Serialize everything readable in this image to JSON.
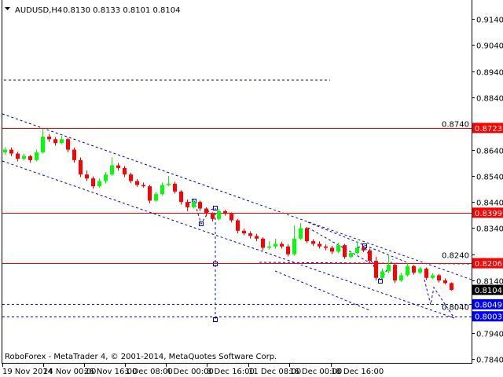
{
  "header": {
    "menu_icon": "triangle-down-icon",
    "symbol": "AUDUSD,H4",
    "ohlc": "0.8130 0.8133 0.8101 0.8104"
  },
  "footer": {
    "copyright": "RoboForex - MetaTrader 4, © 2001-2014, MetaQuotes Software Corp."
  },
  "chart_data": {
    "type": "candlestick",
    "title": "AUDUSD,H4",
    "ylim": [
      0.784,
      0.914
    ],
    "grid": false,
    "price_ticks": [
      "0.9140",
      "0.9040",
      "0.8940",
      "0.8840",
      "0.8740",
      "0.8640",
      "0.8540",
      "0.8440",
      "0.8340",
      "0.8240",
      "0.8140",
      "0.8040",
      "0.7940",
      "0.7840"
    ],
    "time_ticks": [
      "19 Nov 2014",
      "24 Nov 00:00",
      "26 Nov 16:00",
      "1 Dec 08:00",
      "4 Dec 00:00",
      "8 Dec 16:00",
      "11 Dec 08:00",
      "16 Dec 00:00",
      "18 Dec 16:00"
    ],
    "colors": {
      "bull": "#00ff00",
      "bear": "#ff0000",
      "level": "#ff0000",
      "target": "#0000ff",
      "channel": "#0000cc"
    },
    "levels": [
      {
        "price": 0.8723,
        "label": "0.8723",
        "color": "#ff0000",
        "style": "solid"
      },
      {
        "price": 0.8399,
        "label": "0.8399",
        "color": "#ff0000",
        "style": "solid"
      },
      {
        "price": 0.8206,
        "label": "0.8206",
        "color": "#ff0000",
        "style": "solid"
      },
      {
        "price": 0.8049,
        "label": "0.8049",
        "color": "#0000ff",
        "style": "dashed"
      },
      {
        "price": 0.8003,
        "label": "0.8003",
        "color": "#0000ff",
        "style": "dashed"
      }
    ],
    "short_level": {
      "price": 0.8906,
      "color": "#0000cc",
      "style": "dashed"
    },
    "current_price": {
      "price": 0.8104,
      "label": "0.8104",
      "color": "#000000"
    },
    "candles": [
      [
        0.863,
        0.865,
        0.862,
        0.864
      ],
      [
        0.864,
        0.8648,
        0.8615,
        0.8625
      ],
      [
        0.8625,
        0.8632,
        0.8595,
        0.8605
      ],
      [
        0.8605,
        0.8625,
        0.8598,
        0.8615
      ],
      [
        0.8615,
        0.862,
        0.859,
        0.86
      ],
      [
        0.86,
        0.864,
        0.8595,
        0.863
      ],
      [
        0.863,
        0.872,
        0.8625,
        0.869
      ],
      [
        0.869,
        0.87,
        0.867,
        0.868
      ],
      [
        0.868,
        0.8688,
        0.8655,
        0.8665
      ],
      [
        0.8665,
        0.8692,
        0.866,
        0.868
      ],
      [
        0.868,
        0.8685,
        0.863,
        0.864
      ],
      [
        0.864,
        0.8648,
        0.859,
        0.86
      ],
      [
        0.86,
        0.861,
        0.8535,
        0.8545
      ],
      [
        0.8545,
        0.856,
        0.852,
        0.853
      ],
      [
        0.853,
        0.8538,
        0.849,
        0.85
      ],
      [
        0.85,
        0.853,
        0.8495,
        0.852
      ],
      [
        0.852,
        0.8555,
        0.851,
        0.8545
      ],
      [
        0.8545,
        0.861,
        0.854,
        0.858
      ],
      [
        0.858,
        0.859,
        0.856,
        0.857
      ],
      [
        0.857,
        0.8578,
        0.8535,
        0.8545
      ],
      [
        0.8545,
        0.8552,
        0.8512,
        0.852
      ],
      [
        0.852,
        0.8528,
        0.8498,
        0.8505
      ],
      [
        0.8505,
        0.8515,
        0.8495,
        0.85
      ],
      [
        0.85,
        0.8505,
        0.8435,
        0.8445
      ],
      [
        0.8445,
        0.8478,
        0.844,
        0.847
      ],
      [
        0.847,
        0.8515,
        0.8465,
        0.8505
      ],
      [
        0.8505,
        0.854,
        0.85,
        0.851
      ],
      [
        0.851,
        0.8518,
        0.8472,
        0.848
      ],
      [
        0.848,
        0.8485,
        0.843,
        0.844
      ],
      [
        0.844,
        0.845,
        0.8405,
        0.842
      ],
      [
        0.842,
        0.845,
        0.8415,
        0.844
      ],
      [
        0.844,
        0.8445,
        0.8405,
        0.8415
      ],
      [
        0.8415,
        0.842,
        0.8385,
        0.8395
      ],
      [
        0.8395,
        0.84,
        0.8365,
        0.8375
      ],
      [
        0.8375,
        0.8415,
        0.837,
        0.8405
      ],
      [
        0.8405,
        0.841,
        0.8388,
        0.8395
      ],
      [
        0.8395,
        0.84,
        0.8362,
        0.837
      ],
      [
        0.837,
        0.8375,
        0.832,
        0.833
      ],
      [
        0.833,
        0.8338,
        0.8312,
        0.832
      ],
      [
        0.832,
        0.8328,
        0.83,
        0.831
      ],
      [
        0.831,
        0.8318,
        0.829,
        0.83
      ],
      [
        0.83,
        0.8305,
        0.8255,
        0.8265
      ],
      [
        0.8265,
        0.829,
        0.8258,
        0.827
      ],
      [
        0.827,
        0.83,
        0.8262,
        0.828
      ],
      [
        0.828,
        0.8288,
        0.8262,
        0.827
      ],
      [
        0.827,
        0.8278,
        0.8232,
        0.824
      ],
      [
        0.824,
        0.835,
        0.8235,
        0.83
      ],
      [
        0.83,
        0.836,
        0.8295,
        0.834
      ],
      [
        0.834,
        0.8345,
        0.8282,
        0.829
      ],
      [
        0.829,
        0.8298,
        0.8272,
        0.828
      ],
      [
        0.828,
        0.829,
        0.8262,
        0.827
      ],
      [
        0.827,
        0.8278,
        0.8255,
        0.8265
      ],
      [
        0.8265,
        0.8272,
        0.824,
        0.825
      ],
      [
        0.825,
        0.8285,
        0.8245,
        0.8275
      ],
      [
        0.8275,
        0.828,
        0.8222,
        0.823
      ],
      [
        0.823,
        0.8252,
        0.8225,
        0.8245
      ],
      [
        0.8245,
        0.829,
        0.824,
        0.8265
      ],
      [
        0.8265,
        0.8272,
        0.8248,
        0.8255
      ],
      [
        0.8255,
        0.8262,
        0.8205,
        0.8215
      ],
      [
        0.8215,
        0.823,
        0.814,
        0.815
      ],
      [
        0.815,
        0.8185,
        0.8145,
        0.8175
      ],
      [
        0.8175,
        0.824,
        0.8168,
        0.82
      ],
      [
        0.82,
        0.8205,
        0.813,
        0.814
      ],
      [
        0.814,
        0.817,
        0.8135,
        0.816
      ],
      [
        0.816,
        0.8205,
        0.8155,
        0.8195
      ],
      [
        0.8195,
        0.82,
        0.8162,
        0.817
      ],
      [
        0.817,
        0.8192,
        0.8165,
        0.8185
      ],
      [
        0.8185,
        0.819,
        0.8142,
        0.815
      ],
      [
        0.815,
        0.8168,
        0.8145,
        0.816
      ],
      [
        0.816,
        0.8165,
        0.8132,
        0.814
      ],
      [
        0.814,
        0.8148,
        0.8125,
        0.813
      ],
      [
        0.813,
        0.8133,
        0.8101,
        0.8104
      ]
    ]
  }
}
